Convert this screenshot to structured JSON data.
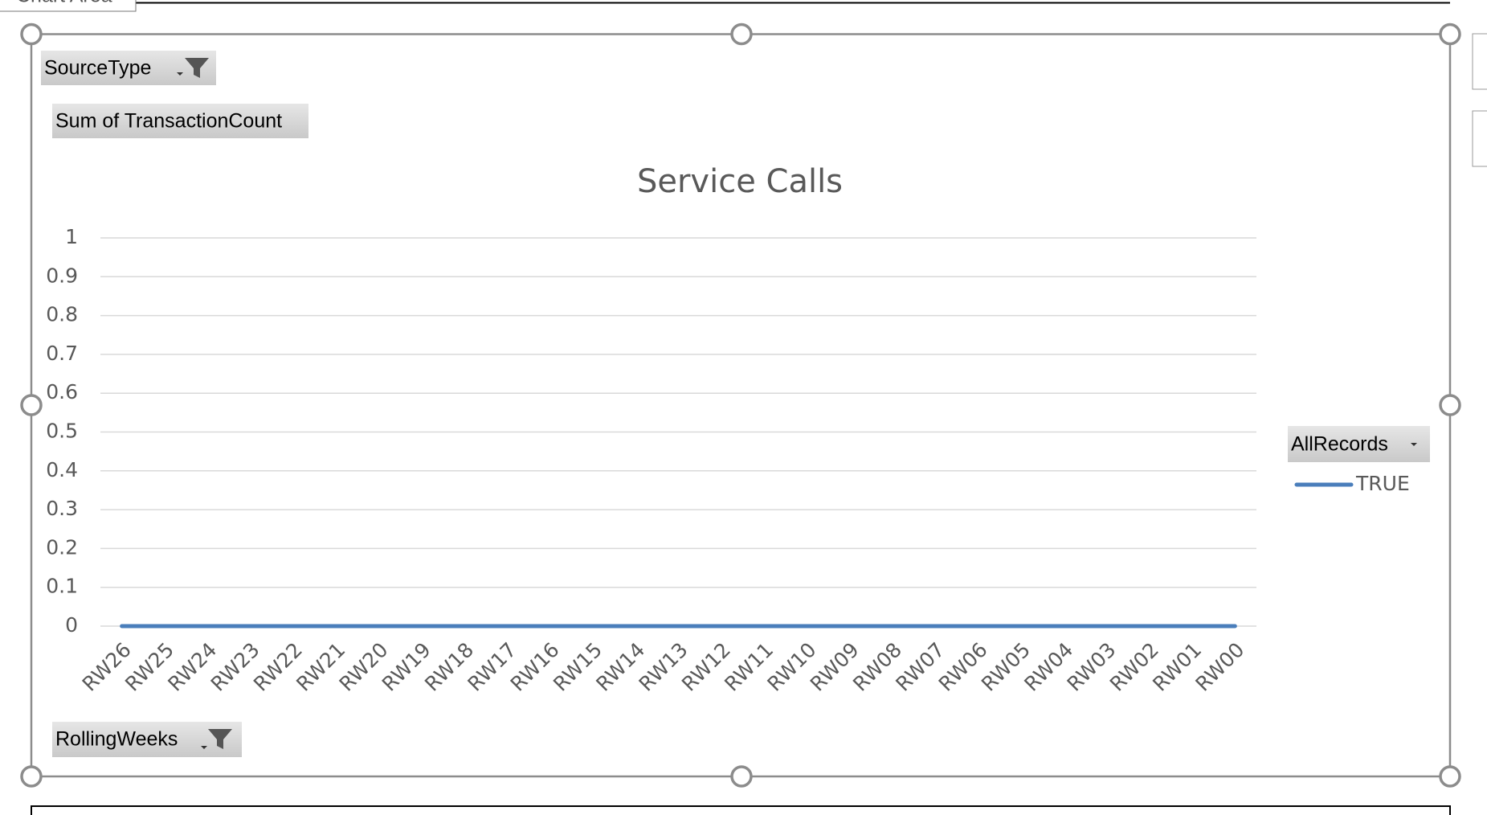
{
  "ui": {
    "tooltip": "Chart Area",
    "report_filter": "SourceType",
    "value_field": "Sum of TransactionCount",
    "axis_field": "RollingWeeks",
    "legend_field": "AllRecords"
  },
  "chart_data": {
    "type": "line",
    "title": "Service Calls",
    "categories": [
      "RW26",
      "RW25",
      "RW24",
      "RW23",
      "RW22",
      "RW21",
      "RW20",
      "RW19",
      "RW18",
      "RW17",
      "RW16",
      "RW15",
      "RW14",
      "RW13",
      "RW12",
      "RW11",
      "RW10",
      "RW09",
      "RW08",
      "RW07",
      "RW06",
      "RW05",
      "RW04",
      "RW03",
      "RW02",
      "RW01",
      "RW00"
    ],
    "series": [
      {
        "name": "TRUE",
        "color": "#4a7ebb",
        "values": [
          0,
          0,
          0,
          0,
          0,
          0,
          0,
          0,
          0,
          0,
          0,
          0,
          0,
          0,
          0,
          0,
          0,
          0,
          0,
          0,
          0,
          0,
          0,
          0,
          0,
          0,
          0
        ]
      }
    ],
    "ylim": [
      0,
      1
    ],
    "yticks": [
      0,
      0.1,
      0.2,
      0.3,
      0.4,
      0.5,
      0.6,
      0.7,
      0.8,
      0.9,
      1
    ],
    "grid": true,
    "legend": "right"
  }
}
